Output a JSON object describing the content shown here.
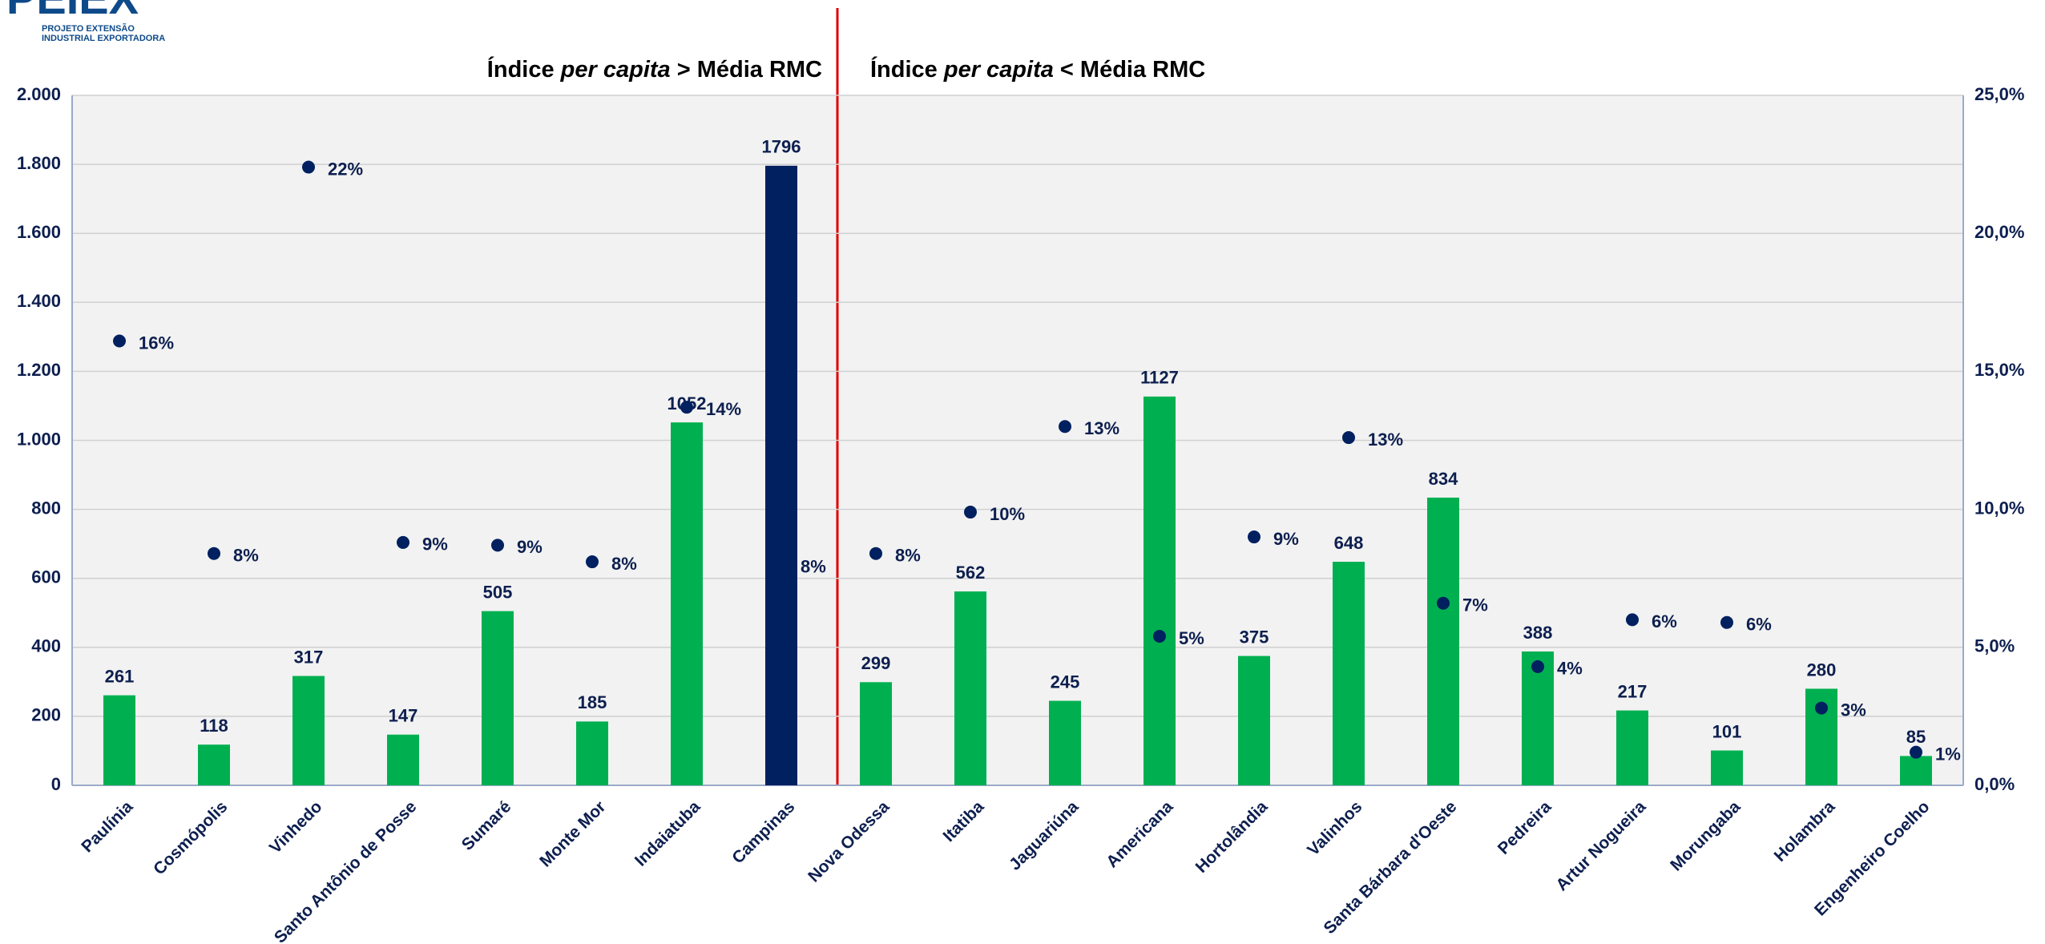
{
  "logo": {
    "title": "PEIEX",
    "lines": [
      "PROJETO EXTENSÃO",
      "INDUSTRIAL EXPORTADORA"
    ]
  },
  "chart_data": {
    "type": "bar",
    "annotations": [
      [
        "Índice ",
        "per capita",
        " > Média RMC"
      ],
      [
        "Índice ",
        "per capita",
        " < Média RMC"
      ]
    ],
    "categories": [
      "Paulínia",
      "Cosmópolis",
      "Vinhedo",
      "Santo Antônio de Posse",
      "Sumaré",
      "Monte Mor",
      "Indaiatuba",
      "Campinas",
      "Nova Odessa",
      "Itatiba",
      "Jaguariúna",
      "Americana",
      "Hortolândia",
      "Valinhos",
      "Santa Bárbara d'Oeste",
      "Pedreira",
      "Artur Nogueira",
      "Morungaba",
      "Holambra",
      "Engenheiro Coelho"
    ],
    "series": [
      {
        "type": "bar",
        "colors": [
          "#00b050",
          "#00b050",
          "#00b050",
          "#00b050",
          "#00b050",
          "#00b050",
          "#00b050",
          "#002060",
          "#00b050",
          "#00b050",
          "#00b050",
          "#00b050",
          "#00b050",
          "#00b050",
          "#00b050",
          "#00b050",
          "#00b050",
          "#00b050",
          "#00b050",
          "#00b050"
        ],
        "values": [
          261,
          118,
          317,
          147,
          505,
          185,
          1052,
          1796,
          299,
          562,
          245,
          1127,
          375,
          648,
          834,
          388,
          217,
          101,
          280,
          85
        ]
      },
      {
        "type": "scatter",
        "axis": "y2",
        "color": "#002060",
        "values": [
          16.1,
          8.4,
          22.4,
          8.8,
          8.7,
          8.1,
          13.7,
          8.0,
          8.4,
          9.9,
          13.0,
          5.4,
          9.0,
          12.6,
          6.6,
          4.3,
          6.0,
          5.9,
          2.8,
          1.2
        ],
        "value_labels": [
          "16%",
          "8%",
          "22%",
          "9%",
          "9%",
          "8%",
          "14%",
          "8%",
          "8%",
          "10%",
          "13%",
          "5%",
          "9%",
          "13%",
          "7%",
          "4%",
          "6%",
          "6%",
          "3%",
          "1%"
        ]
      }
    ],
    "ylim": [
      0,
      2000
    ],
    "yticks": [
      0,
      200,
      400,
      600,
      800,
      {
        "value": 1000,
        "label": "1.000"
      },
      {
        "value": 1200,
        "label": "1.200"
      },
      {
        "value": 1400,
        "label": "1.400"
      },
      {
        "value": 1600,
        "label": "1.600"
      },
      {
        "value": 1800,
        "label": "1.800"
      },
      {
        "value": 2000,
        "label": "2.000"
      }
    ],
    "y2lim": [
      0,
      25
    ],
    "y2ticks": [
      {
        "value": 0,
        "label": "0,0%"
      },
      {
        "value": 5,
        "label": "5,0%"
      },
      {
        "value": 10,
        "label": "10,0%"
      },
      {
        "value": 15,
        "label": "15,0%"
      },
      {
        "value": 20,
        "label": "20,0%"
      },
      {
        "value": 25,
        "label": "25,0%"
      }
    ],
    "grid": true
  }
}
